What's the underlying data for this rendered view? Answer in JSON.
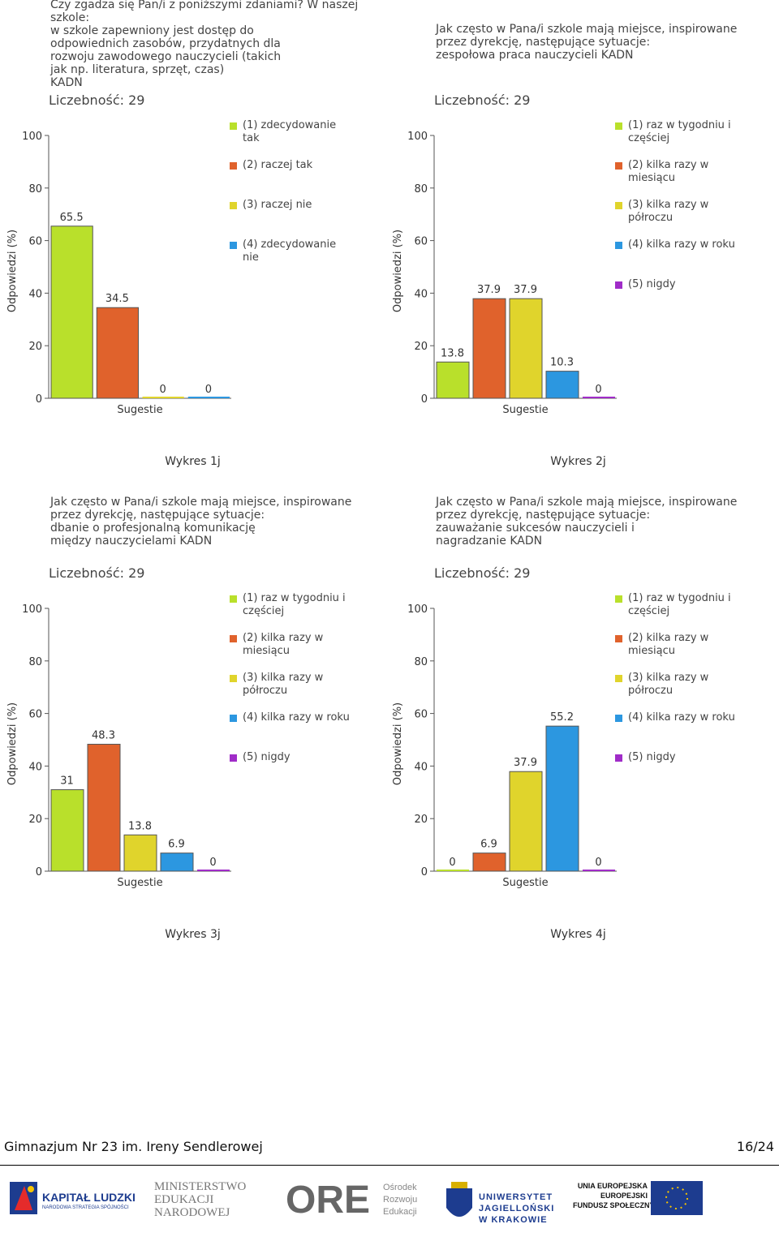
{
  "chart_data": [
    {
      "type": "bar",
      "title": [
        "Czy zgadza się Pan/i z poniższymi zdaniami? W naszej",
        "szkole:",
        "w szkole zapewniony jest dostęp do",
        "odpowiednich zasobów, przydatnych dla",
        "rozwoju zawodowego nauczycieli (takich",
        "jak np. literatura, sprzęt, czas)",
        "KADN"
      ],
      "subtitle": "Liczebność: 29",
      "ylabel": "Odpowiedzi (%)",
      "xlabel": "Sugestie",
      "caption": "Wykres 1j",
      "ylim": [
        0,
        100
      ],
      "yticks": [
        0,
        20,
        40,
        60,
        80,
        100
      ],
      "series": [
        {
          "name": "(1) zdecydowanie tak",
          "color": "#b9e02b",
          "values": [
            65.5
          ]
        },
        {
          "name": "(2) raczej tak",
          "color": "#e0622c",
          "values": [
            34.5
          ]
        },
        {
          "name": "(3) raczej nie",
          "color": "#e0d42c",
          "values": [
            0
          ]
        },
        {
          "name": "(4) zdecydowanie nie",
          "color": "#2c97e0",
          "values": [
            0
          ]
        }
      ]
    },
    {
      "type": "bar",
      "title": [
        "Jak często w Pana/i szkole mają miejsce, inspirowane",
        "przez dyrekcję, następujące sytuacje:",
        "zespołowa praca nauczycieli KADN"
      ],
      "subtitle": "Liczebność: 29",
      "ylabel": "Odpowiedzi (%)",
      "xlabel": "Sugestie",
      "caption": "Wykres 2j",
      "ylim": [
        0,
        100
      ],
      "yticks": [
        0,
        20,
        40,
        60,
        80,
        100
      ],
      "series": [
        {
          "name": "(1) raz w tygodniu i częściej",
          "color": "#b9e02b",
          "values": [
            13.8
          ]
        },
        {
          "name": "(2) kilka razy w miesiącu",
          "color": "#e0622c",
          "values": [
            37.9
          ]
        },
        {
          "name": "(3) kilka razy w półroczu",
          "color": "#e0d42c",
          "values": [
            37.9
          ]
        },
        {
          "name": "(4) kilka razy w roku",
          "color": "#2c97e0",
          "values": [
            10.3
          ]
        },
        {
          "name": "(5) nigdy",
          "color": "#a02cc8",
          "values": [
            0
          ]
        }
      ]
    },
    {
      "type": "bar",
      "title": [
        "Jak często w Pana/i szkole mają miejsce, inspirowane",
        "przez dyrekcję, następujące sytuacje:",
        "dbanie o profesjonalną komunikację",
        "między nauczycielami KADN"
      ],
      "subtitle": "Liczebność: 29",
      "ylabel": "Odpowiedzi (%)",
      "xlabel": "Sugestie",
      "caption": "Wykres 3j",
      "ylim": [
        0,
        100
      ],
      "yticks": [
        0,
        20,
        40,
        60,
        80,
        100
      ],
      "series": [
        {
          "name": "(1) raz w tygodniu i częściej",
          "color": "#b9e02b",
          "values": [
            31
          ]
        },
        {
          "name": "(2) kilka razy w miesiącu",
          "color": "#e0622c",
          "values": [
            48.3
          ]
        },
        {
          "name": "(3) kilka razy w półroczu",
          "color": "#e0d42c",
          "values": [
            13.8
          ]
        },
        {
          "name": "(4) kilka razy w roku",
          "color": "#2c97e0",
          "values": [
            6.9
          ]
        },
        {
          "name": "(5) nigdy",
          "color": "#a02cc8",
          "values": [
            0
          ]
        }
      ]
    },
    {
      "type": "bar",
      "title": [
        "Jak często w Pana/i szkole mają miejsce, inspirowane",
        "przez dyrekcję, następujące sytuacje:",
        "zauważanie sukcesów nauczycieli i",
        "nagradzanie KADN"
      ],
      "subtitle": "Liczebność: 29",
      "ylabel": "Odpowiedzi (%)",
      "xlabel": "Sugestie",
      "caption": "Wykres 4j",
      "ylim": [
        0,
        100
      ],
      "yticks": [
        0,
        20,
        40,
        60,
        80,
        100
      ],
      "series": [
        {
          "name": "(1) raz w tygodniu i częściej",
          "color": "#b9e02b",
          "values": [
            0
          ]
        },
        {
          "name": "(2) kilka razy w miesiącu",
          "color": "#e0622c",
          "values": [
            6.9
          ]
        },
        {
          "name": "(3) kilka razy w półroczu",
          "color": "#e0d42c",
          "values": [
            37.9
          ]
        },
        {
          "name": "(4) kilka razy w roku",
          "color": "#2c97e0",
          "values": [
            55.2
          ]
        },
        {
          "name": "(5) nigdy",
          "color": "#a02cc8",
          "values": [
            0
          ]
        }
      ]
    }
  ],
  "footer": {
    "school": "Gimnazjum Nr 23 im. Ireny Sendlerowej",
    "page": "16/24"
  },
  "logos": {
    "kl": "KAPITAŁ LUDZKI",
    "kl_sub": "NARODOWA STRATEGIA SPÓJNOŚCI",
    "men": [
      "MINISTERSTWO",
      "EDUKACJI",
      "NARODOWEJ"
    ],
    "ore": "ORE",
    "ore_sub": [
      "Ośrodek",
      "Rozwoju",
      "Edukacji"
    ],
    "uj": [
      "UNIWERSYTET",
      "JAGIELLOŃSKI",
      "W KRAKOWIE"
    ],
    "ue": [
      "UNIA EUROPEJSKA",
      "EUROPEJSKI",
      "FUNDUSZ SPOŁECZNY"
    ]
  }
}
